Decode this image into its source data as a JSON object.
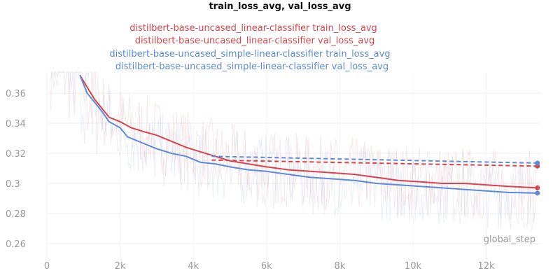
{
  "chart_data": {
    "type": "line",
    "title": "train_loss_avg, val_loss_avg",
    "xlabel": "global_step",
    "ylabel": "",
    "xlim": [
      0,
      13500
    ],
    "ylim": [
      0.246,
      0.374
    ],
    "x_ticks": [
      0,
      2000,
      4000,
      6000,
      8000,
      10000,
      12000
    ],
    "x_tick_labels": [
      "0",
      "2k",
      "4k",
      "6k",
      "8k",
      "10k",
      "12k"
    ],
    "y_ticks": [
      0.26,
      0.28,
      0.3,
      0.32,
      0.34,
      0.36
    ],
    "y_tick_labels": [
      "0.26",
      "0.28",
      "0.3",
      "0.32",
      "0.34",
      "0.36"
    ],
    "grid": true,
    "legend_position": "top-center",
    "series": [
      {
        "name": "distilbert-base-uncased_linear-classifier train_loss_avg",
        "color": "#d9444b",
        "style": "solid",
        "x": [
          900,
          1100,
          1300,
          1500,
          1700,
          2000,
          2300,
          2700,
          3000,
          3400,
          3800,
          4200,
          4600,
          5000,
          5500,
          6000,
          6600,
          7200,
          7800,
          8400,
          9000,
          9600,
          10200,
          10800,
          11400,
          12000,
          12600,
          13400
        ],
        "y": [
          0.372,
          0.364,
          0.356,
          0.35,
          0.344,
          0.341,
          0.337,
          0.334,
          0.332,
          0.328,
          0.324,
          0.321,
          0.318,
          0.315,
          0.313,
          0.311,
          0.309,
          0.308,
          0.307,
          0.306,
          0.304,
          0.302,
          0.301,
          0.3,
          0.3,
          0.299,
          0.298,
          0.297
        ]
      },
      {
        "name": "distilbert-base-uncased_linear-classifier val_loss_avg",
        "color": "#d9444b",
        "style": "dashed",
        "x": [
          4500,
          13400
        ],
        "y": [
          0.3155,
          0.3115
        ]
      },
      {
        "name": "distilbert-base-uncased_simple-linear-classifier train_loss_avg",
        "color": "#5b8bd9",
        "style": "solid",
        "x": [
          900,
          1100,
          1300,
          1500,
          1700,
          2000,
          2200,
          2600,
          3000,
          3400,
          3800,
          4200,
          4600,
          5000,
          5500,
          6000,
          6600,
          7200,
          7800,
          8400,
          9000,
          9600,
          10200,
          10800,
          11400,
          12000,
          12600,
          13400
        ],
        "y": [
          0.372,
          0.36,
          0.354,
          0.348,
          0.341,
          0.337,
          0.331,
          0.327,
          0.323,
          0.32,
          0.318,
          0.314,
          0.313,
          0.311,
          0.309,
          0.308,
          0.306,
          0.304,
          0.303,
          0.302,
          0.3,
          0.299,
          0.298,
          0.297,
          0.296,
          0.295,
          0.294,
          0.2935
        ]
      },
      {
        "name": "distilbert-base-uncased_simple-linear-classifier val_loss_avg",
        "color": "#5b8bd9",
        "style": "dashed",
        "x": [
          4500,
          13400
        ],
        "y": [
          0.318,
          0.3135
        ]
      }
    ]
  }
}
